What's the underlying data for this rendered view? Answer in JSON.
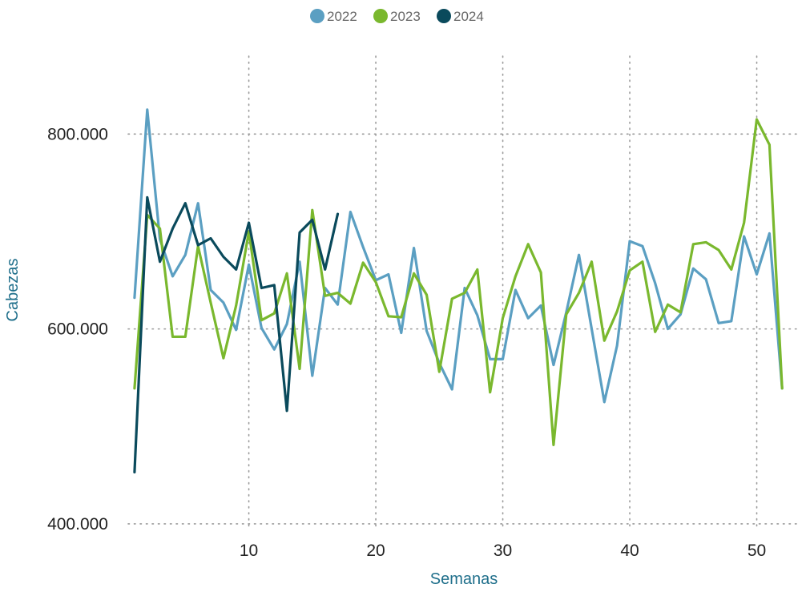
{
  "chart_data": {
    "type": "line",
    "xlabel": "Semanas",
    "ylabel": "Cabezas",
    "xlim": [
      0.5,
      53.5
    ],
    "ylim": [
      395000,
      880000
    ],
    "x_ticks": [
      10,
      20,
      30,
      40,
      50
    ],
    "x_tick_labels": [
      "10",
      "20",
      "30",
      "40",
      "50"
    ],
    "y_ticks": [
      400000,
      600000,
      800000
    ],
    "y_tick_labels": [
      "400.000",
      "600.000",
      "800.000"
    ],
    "grid": "dotted",
    "legend_position": "top-center",
    "series": [
      {
        "name": "2022",
        "color": "#5B9FC2",
        "x": [
          1,
          2,
          3,
          4,
          5,
          6,
          7,
          8,
          9,
          10,
          11,
          12,
          13,
          14,
          15,
          16,
          17,
          18,
          19,
          20,
          21,
          22,
          23,
          24,
          25,
          26,
          27,
          28,
          29,
          30,
          31,
          32,
          33,
          34,
          35,
          36,
          37,
          38,
          39,
          40,
          41,
          42,
          43,
          44,
          45,
          46,
          47,
          48,
          49,
          50,
          51,
          52
        ],
        "values": [
          632000,
          825000,
          692000,
          654000,
          676000,
          729000,
          640000,
          627000,
          599000,
          666000,
          601000,
          579000,
          605000,
          669000,
          552000,
          642000,
          625000,
          720000,
          684000,
          650000,
          656000,
          596000,
          683000,
          598000,
          565000,
          538000,
          642000,
          614000,
          569000,
          569000,
          640000,
          611000,
          624000,
          563000,
          617000,
          676000,
          600000,
          525000,
          583000,
          690000,
          685000,
          647000,
          600000,
          615000,
          662000,
          651000,
          606000,
          608000,
          695000,
          656000,
          698000,
          539000
        ]
      },
      {
        "name": "2023",
        "color": "#7AB82E",
        "x": [
          1,
          2,
          3,
          4,
          5,
          6,
          7,
          8,
          9,
          10,
          11,
          12,
          13,
          14,
          15,
          16,
          17,
          18,
          19,
          20,
          21,
          22,
          23,
          24,
          25,
          26,
          27,
          28,
          29,
          30,
          31,
          32,
          33,
          34,
          35,
          36,
          37,
          38,
          39,
          40,
          41,
          42,
          43,
          44,
          45,
          46,
          47,
          48,
          49,
          50,
          51,
          52
        ],
        "values": [
          539000,
          717000,
          703000,
          592000,
          592000,
          685000,
          627000,
          570000,
          624000,
          700000,
          609000,
          616000,
          657000,
          559000,
          722000,
          634000,
          637000,
          626000,
          668000,
          648000,
          613000,
          612000,
          657000,
          635000,
          556000,
          631000,
          637000,
          661000,
          535000,
          611000,
          654000,
          687000,
          658000,
          481000,
          615000,
          637000,
          669000,
          588000,
          618000,
          660000,
          669000,
          597000,
          625000,
          617000,
          687000,
          689000,
          681000,
          661000,
          709000,
          815000,
          789000,
          539000
        ]
      },
      {
        "name": "2024",
        "color": "#0A4A5C",
        "x": [
          1,
          2,
          3,
          4,
          5,
          6,
          7,
          8,
          9,
          10,
          11,
          12,
          13,
          14,
          15,
          16,
          17
        ],
        "values": [
          453000,
          735000,
          669000,
          703000,
          729000,
          686000,
          693000,
          674000,
          661000,
          709000,
          642000,
          645000,
          516000,
          699000,
          712000,
          661000,
          718000
        ]
      }
    ]
  }
}
